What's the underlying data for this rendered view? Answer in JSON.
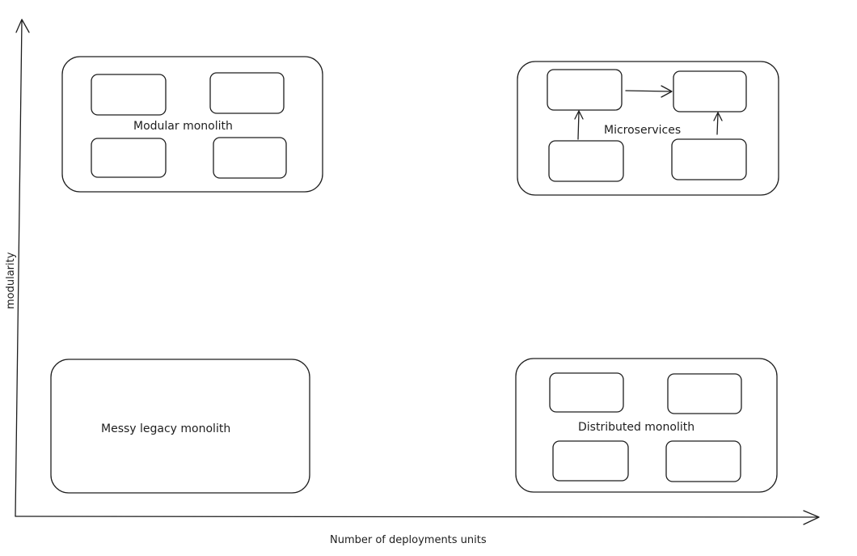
{
  "axes": {
    "x_label": "Number of deployments units",
    "y_label": "modularity"
  },
  "quadrants": {
    "modular_monolith": {
      "label": "Modular monolith",
      "fill": "#5fc3d2",
      "bg": "#a5dfe6"
    },
    "microservices": {
      "label": "Microservices",
      "fill": "#5fc3d2"
    },
    "messy_legacy": {
      "label": "Messy legacy monolith",
      "fill": "#f29a9a",
      "bg": "#f7b3b3"
    },
    "distributed_monolith": {
      "label": "Distributed monolith",
      "fill": "#f29a9a",
      "bg": "#e9ecef"
    }
  }
}
